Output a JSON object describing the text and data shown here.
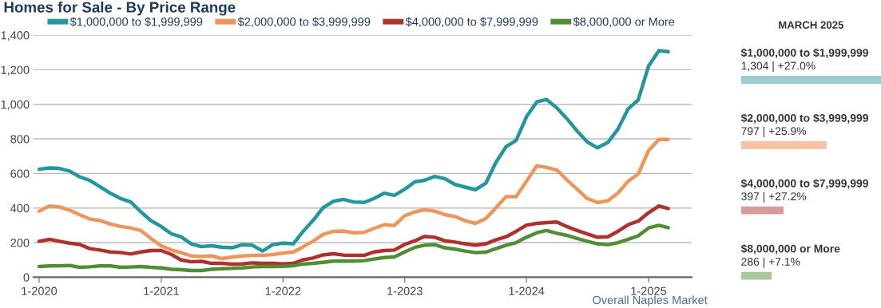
{
  "chart_data": [
    {
      "type": "line",
      "title": "Homes for Sale - By Price Range",
      "x": [
        "2020-01",
        "2020-02",
        "2020-03",
        "2020-04",
        "2020-05",
        "2020-06",
        "2020-07",
        "2020-08",
        "2020-09",
        "2020-10",
        "2020-11",
        "2020-12",
        "2021-01",
        "2021-02",
        "2021-03",
        "2021-04",
        "2021-05",
        "2021-06",
        "2021-07",
        "2021-08",
        "2021-09",
        "2021-10",
        "2021-11",
        "2021-12",
        "2022-01",
        "2022-02",
        "2022-03",
        "2022-04",
        "2022-05",
        "2022-06",
        "2022-07",
        "2022-08",
        "2022-09",
        "2022-10",
        "2022-11",
        "2022-12",
        "2023-01",
        "2023-02",
        "2023-03",
        "2023-04",
        "2023-05",
        "2023-06",
        "2023-07",
        "2023-08",
        "2023-09",
        "2023-10",
        "2023-11",
        "2023-12",
        "2024-01",
        "2024-02",
        "2024-03",
        "2024-04",
        "2024-05",
        "2024-06",
        "2024-07",
        "2024-08",
        "2024-09",
        "2024-10",
        "2024-11",
        "2024-12",
        "2025-01",
        "2025-02",
        "2025-03"
      ],
      "series": [
        {
          "name": "$1,000,000 to $1,999,999",
          "color": "#2396a0",
          "values": [
            624,
            632,
            629,
            614,
            581,
            560,
            524,
            486,
            455,
            436,
            378,
            327,
            293,
            250,
            234,
            193,
            177,
            182,
            174,
            170,
            188,
            185,
            151,
            188,
            197,
            193,
            262,
            328,
            401,
            439,
            450,
            435,
            432,
            455,
            486,
            473,
            509,
            552,
            560,
            583,
            570,
            536,
            521,
            506,
            543,
            663,
            755,
            791,
            928,
            1014,
            1028,
            979,
            917,
            845,
            783,
            748,
            779,
            856,
            974,
            1025,
            1221,
            1310,
            1304
          ]
        },
        {
          "name": "$2,000,000 to $3,999,999",
          "color": "#f0955a",
          "values": [
            382,
            412,
            407,
            388,
            362,
            336,
            328,
            308,
            293,
            285,
            270,
            224,
            182,
            157,
            142,
            123,
            120,
            123,
            108,
            116,
            123,
            126,
            126,
            131,
            139,
            146,
            174,
            208,
            247,
            265,
            267,
            257,
            259,
            282,
            304,
            299,
            355,
            378,
            390,
            382,
            362,
            351,
            327,
            311,
            339,
            401,
            466,
            466,
            555,
            644,
            635,
            620,
            563,
            509,
            455,
            432,
            442,
            486,
            555,
            597,
            732,
            797,
            797
          ]
        },
        {
          "name": "$4,000,000 to $7,999,999",
          "color": "#b0302c",
          "values": [
            208,
            219,
            208,
            197,
            190,
            165,
            157,
            146,
            143,
            134,
            146,
            154,
            154,
            131,
            100,
            89,
            92,
            80,
            80,
            76,
            77,
            83,
            80,
            80,
            77,
            80,
            100,
            111,
            129,
            136,
            128,
            126,
            126,
            146,
            154,
            157,
            190,
            211,
            236,
            231,
            211,
            203,
            193,
            185,
            193,
            216,
            234,
            265,
            301,
            311,
            316,
            319,
            293,
            270,
            250,
            231,
            234,
            265,
            304,
            324,
            373,
            412,
            397
          ]
        },
        {
          "name": "$8,000,000 or More",
          "color": "#4e8f35",
          "values": [
            62,
            65,
            66,
            68,
            57,
            60,
            65,
            66,
            57,
            59,
            62,
            57,
            54,
            46,
            43,
            39,
            39,
            46,
            49,
            51,
            54,
            59,
            62,
            62,
            63,
            66,
            76,
            80,
            86,
            93,
            93,
            93,
            96,
            105,
            114,
            117,
            146,
            173,
            185,
            188,
            170,
            162,
            151,
            142,
            145,
            165,
            185,
            200,
            231,
            257,
            270,
            254,
            242,
            224,
            208,
            193,
            188,
            200,
            219,
            239,
            285,
            300,
            286
          ]
        }
      ],
      "xlim": [
        "2019-12-15",
        "2025-05-10"
      ],
      "xticks": [
        {
          "value": "2020-01",
          "label": "1-2020"
        },
        {
          "value": "2021-01",
          "label": "1-2021"
        },
        {
          "value": "2022-01",
          "label": "1-2022"
        },
        {
          "value": "2023-01",
          "label": "1-2023"
        },
        {
          "value": "2024-01",
          "label": "1-2024"
        },
        {
          "value": "2025-01",
          "label": "1-2025"
        }
      ],
      "ylim": [
        0,
        1400
      ],
      "yticks": [
        0,
        200,
        400,
        600,
        800,
        {
          "value": 1000,
          "label": "1,000"
        },
        {
          "value": 1200,
          "label": "1,200"
        },
        {
          "value": 1400,
          "label": "1,400"
        }
      ],
      "grid": "y",
      "legend": "top",
      "marker": "none",
      "line_style": "solid",
      "annotations": [
        "Overall Naples Market"
      ]
    },
    {
      "type": "bar",
      "orientation": "horizontal",
      "title": "MARCH 2025",
      "categories": [
        "$1,000,000 to $1,999,999",
        "$2,000,000 to $3,999,999",
        "$4,000,000 to $7,999,999",
        "$8,000,000 or More"
      ],
      "values": [
        1304,
        797,
        397,
        286
      ],
      "colors": [
        "#99cdd0",
        "#f7c3a3",
        "#d99a9a",
        "#a9c99a"
      ],
      "value_labels": [
        "1,304 | +27.0%",
        "797 | +25.9%",
        "397 | +27.2%",
        "286 | +7.1%"
      ]
    }
  ]
}
